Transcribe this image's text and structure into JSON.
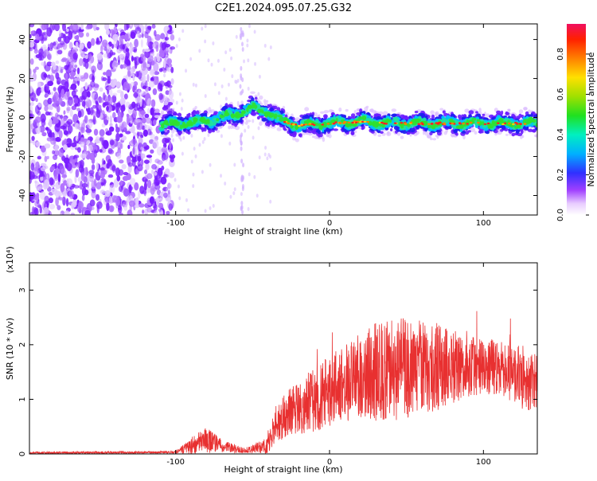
{
  "chart_data": [
    {
      "type": "heatmap",
      "title": "C2E1.2024.095.07.25.G32",
      "xlabel": "Height of straight line (km)",
      "ylabel": "Frequency (Hz)",
      "xlim": [
        -195,
        135
      ],
      "ylim": [
        -50,
        48
      ],
      "xticks": [
        "-100",
        "0",
        "100"
      ],
      "yticks": [
        "-40",
        "-20",
        "0",
        "20",
        "40"
      ],
      "colorbar": {
        "label": "Normalized spectral amplitude",
        "range": [
          0,
          0.95
        ],
        "ticks": [
          "0.0",
          "0.2",
          "0.4",
          "0.6",
          "0.8"
        ]
      },
      "features": {
        "noise_region_x": [
          -195,
          -108
        ],
        "noise_streak_x": -57,
        "signal_track": [
          {
            "x": -110,
            "y": -4
          },
          {
            "x": -80,
            "y": -2
          },
          {
            "x": -60,
            "y": 2
          },
          {
            "x": -50,
            "y": 5
          },
          {
            "x": -38,
            "y": 2
          },
          {
            "x": -30,
            "y": -2
          },
          {
            "x": -20,
            "y": -4
          },
          {
            "x": 0,
            "y": -3
          },
          {
            "x": 20,
            "y": -2
          },
          {
            "x": 40,
            "y": -3
          },
          {
            "x": 60,
            "y": -3
          },
          {
            "x": 80,
            "y": -3
          },
          {
            "x": 100,
            "y": -3
          },
          {
            "x": 120,
            "y": -3
          },
          {
            "x": 135,
            "y": -3
          }
        ]
      },
      "grid": false
    },
    {
      "type": "line",
      "xlabel": "Height of straight line (km)",
      "ylabel": "SNR (10 * v/v)",
      "y_multiplier": "(x10⁴)",
      "xlim": [
        -195,
        135
      ],
      "ylim": [
        0,
        3.5
      ],
      "xticks": [
        "-100",
        "0",
        "100"
      ],
      "yticks": [
        "0",
        "1",
        "2",
        "3"
      ],
      "color": "#e83030",
      "envelope": [
        {
          "x": -195,
          "mean": 0.02,
          "spread": 0.02
        },
        {
          "x": -100,
          "mean": 0.03,
          "spread": 0.02
        },
        {
          "x": -90,
          "mean": 0.15,
          "spread": 0.15
        },
        {
          "x": -80,
          "mean": 0.25,
          "spread": 0.25
        },
        {
          "x": -70,
          "mean": 0.15,
          "spread": 0.12
        },
        {
          "x": -55,
          "mean": 0.06,
          "spread": 0.05
        },
        {
          "x": -40,
          "mean": 0.15,
          "spread": 0.15
        },
        {
          "x": -35,
          "mean": 0.55,
          "spread": 0.35
        },
        {
          "x": -25,
          "mean": 0.8,
          "spread": 0.45
        },
        {
          "x": -10,
          "mean": 1.0,
          "spread": 0.6
        },
        {
          "x": 10,
          "mean": 1.3,
          "spread": 0.7
        },
        {
          "x": 30,
          "mean": 1.5,
          "spread": 0.9
        },
        {
          "x": 50,
          "mean": 1.55,
          "spread": 0.95
        },
        {
          "x": 70,
          "mean": 1.6,
          "spread": 0.8
        },
        {
          "x": 90,
          "mean": 1.6,
          "spread": 0.55
        },
        {
          "x": 110,
          "mean": 1.6,
          "spread": 0.5
        },
        {
          "x": 125,
          "mean": 1.4,
          "spread": 0.6
        },
        {
          "x": 135,
          "mean": 1.3,
          "spread": 0.5
        }
      ],
      "grid": false
    }
  ]
}
